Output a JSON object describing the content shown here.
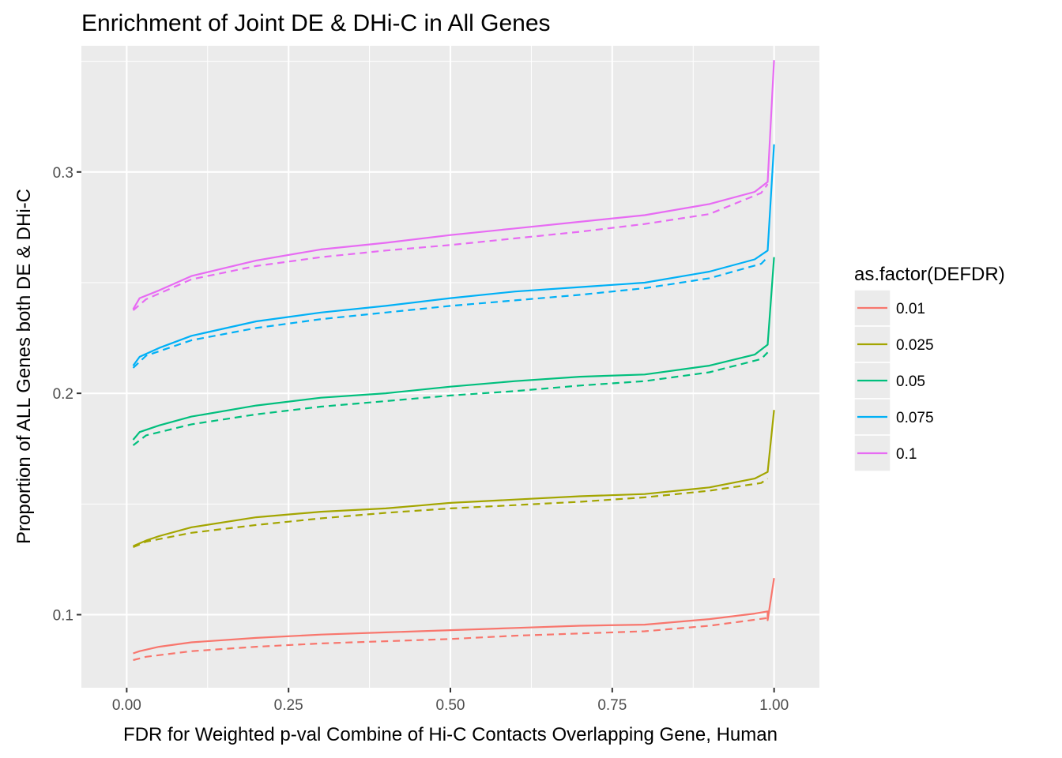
{
  "chart_data": {
    "type": "line",
    "title": "Enrichment of Joint DE & DHi-C in All Genes",
    "xlabel": "FDR for Weighted p-val Combine of Hi-C Contacts Overlapping Gene, Human",
    "ylabel": "Proportion of ALL Genes both DE & DHi-C",
    "xlim": [
      -0.07,
      1.07
    ],
    "ylim": [
      0.067,
      0.357
    ],
    "x_ticks": [
      0.0,
      0.25,
      0.5,
      0.75,
      1.0
    ],
    "x_tick_labels": [
      "0.00",
      "0.25",
      "0.50",
      "0.75",
      "1.00"
    ],
    "y_ticks": [
      0.1,
      0.2,
      0.3
    ],
    "y_tick_labels": [
      "0.1",
      "0.2",
      "0.3"
    ],
    "grid": true,
    "legend": {
      "title": "as.factor(DEFDR)",
      "position": "right",
      "entries": [
        "0.01",
        "0.025",
        "0.05",
        "0.075",
        "0.1"
      ]
    },
    "line_styles": [
      "solid",
      "dashed"
    ],
    "series": [
      {
        "name": "0.01",
        "color": "#F8766D",
        "linetype": "solid",
        "x": [
          0.01,
          0.02,
          0.05,
          0.1,
          0.2,
          0.3,
          0.4,
          0.5,
          0.6,
          0.7,
          0.8,
          0.9,
          0.97,
          0.99,
          0.99,
          1.0
        ],
        "y": [
          0.0825,
          0.0835,
          0.0855,
          0.0875,
          0.0895,
          0.091,
          0.092,
          0.093,
          0.094,
          0.095,
          0.0955,
          0.098,
          0.1005,
          0.1015,
          0.0975,
          0.1165
        ]
      },
      {
        "name": "0.01",
        "color": "#F8766D",
        "linetype": "dashed",
        "x": [
          0.01,
          0.03,
          0.1,
          0.2,
          0.3,
          0.4,
          0.5,
          0.6,
          0.7,
          0.8,
          0.9,
          0.99
        ],
        "y": [
          0.0795,
          0.081,
          0.0835,
          0.0855,
          0.087,
          0.088,
          0.089,
          0.0905,
          0.0915,
          0.0925,
          0.095,
          0.0985
        ]
      },
      {
        "name": "0.025",
        "color": "#A3A500",
        "linetype": "solid",
        "x": [
          0.01,
          0.03,
          0.05,
          0.1,
          0.2,
          0.3,
          0.4,
          0.5,
          0.6,
          0.7,
          0.8,
          0.9,
          0.97,
          0.99,
          1.0
        ],
        "y": [
          0.131,
          0.1335,
          0.1355,
          0.1395,
          0.144,
          0.1465,
          0.148,
          0.1505,
          0.152,
          0.1535,
          0.1545,
          0.1575,
          0.1615,
          0.1645,
          0.1925
        ]
      },
      {
        "name": "0.025",
        "color": "#A3A500",
        "linetype": "dashed",
        "x": [
          0.01,
          0.03,
          0.1,
          0.2,
          0.3,
          0.4,
          0.5,
          0.6,
          0.7,
          0.8,
          0.9,
          0.98,
          0.99
        ],
        "y": [
          0.1305,
          0.133,
          0.137,
          0.1405,
          0.1435,
          0.146,
          0.148,
          0.1495,
          0.151,
          0.153,
          0.156,
          0.1595,
          0.1615
        ]
      },
      {
        "name": "0.05",
        "color": "#00BF7D",
        "linetype": "solid",
        "x": [
          0.01,
          0.02,
          0.05,
          0.1,
          0.2,
          0.3,
          0.4,
          0.5,
          0.6,
          0.7,
          0.8,
          0.9,
          0.97,
          0.99,
          1.0
        ],
        "y": [
          0.179,
          0.1825,
          0.1855,
          0.1895,
          0.1945,
          0.198,
          0.2,
          0.203,
          0.2055,
          0.2075,
          0.2085,
          0.2125,
          0.2175,
          0.222,
          0.2615
        ]
      },
      {
        "name": "0.05",
        "color": "#00BF7D",
        "linetype": "dashed",
        "x": [
          0.01,
          0.03,
          0.1,
          0.2,
          0.3,
          0.4,
          0.5,
          0.6,
          0.7,
          0.8,
          0.9,
          0.98,
          0.99
        ],
        "y": [
          0.1765,
          0.181,
          0.186,
          0.1905,
          0.194,
          0.1965,
          0.199,
          0.201,
          0.2035,
          0.2055,
          0.2095,
          0.2155,
          0.2185
        ]
      },
      {
        "name": "0.075",
        "color": "#00B0F6",
        "linetype": "solid",
        "x": [
          0.01,
          0.02,
          0.05,
          0.1,
          0.2,
          0.3,
          0.4,
          0.5,
          0.6,
          0.7,
          0.8,
          0.9,
          0.97,
          0.99,
          1.0
        ],
        "y": [
          0.2125,
          0.2165,
          0.2205,
          0.226,
          0.2325,
          0.2365,
          0.2395,
          0.243,
          0.246,
          0.248,
          0.25,
          0.255,
          0.2605,
          0.2645,
          0.3125
        ]
      },
      {
        "name": "0.075",
        "color": "#00B0F6",
        "linetype": "dashed",
        "x": [
          0.01,
          0.03,
          0.1,
          0.2,
          0.3,
          0.4,
          0.5,
          0.6,
          0.7,
          0.8,
          0.9,
          0.98,
          0.99
        ],
        "y": [
          0.2115,
          0.217,
          0.224,
          0.2295,
          0.2335,
          0.2365,
          0.2395,
          0.242,
          0.2445,
          0.2475,
          0.252,
          0.2585,
          0.2615
        ]
      },
      {
        "name": "0.1",
        "color": "#E76BF3",
        "linetype": "solid",
        "x": [
          0.01,
          0.02,
          0.05,
          0.1,
          0.2,
          0.3,
          0.4,
          0.5,
          0.6,
          0.7,
          0.8,
          0.9,
          0.97,
          0.99,
          1.0
        ],
        "y": [
          0.238,
          0.243,
          0.2465,
          0.253,
          0.26,
          0.265,
          0.268,
          0.2715,
          0.2745,
          0.2775,
          0.2805,
          0.2855,
          0.291,
          0.2955,
          0.3505
        ]
      },
      {
        "name": "0.1",
        "color": "#E76BF3",
        "linetype": "dashed",
        "x": [
          0.01,
          0.03,
          0.1,
          0.2,
          0.3,
          0.4,
          0.5,
          0.6,
          0.7,
          0.8,
          0.9,
          0.98,
          0.99
        ],
        "y": [
          0.2375,
          0.2425,
          0.2515,
          0.2575,
          0.2615,
          0.2645,
          0.267,
          0.27,
          0.273,
          0.2765,
          0.281,
          0.2905,
          0.2945
        ]
      }
    ]
  }
}
